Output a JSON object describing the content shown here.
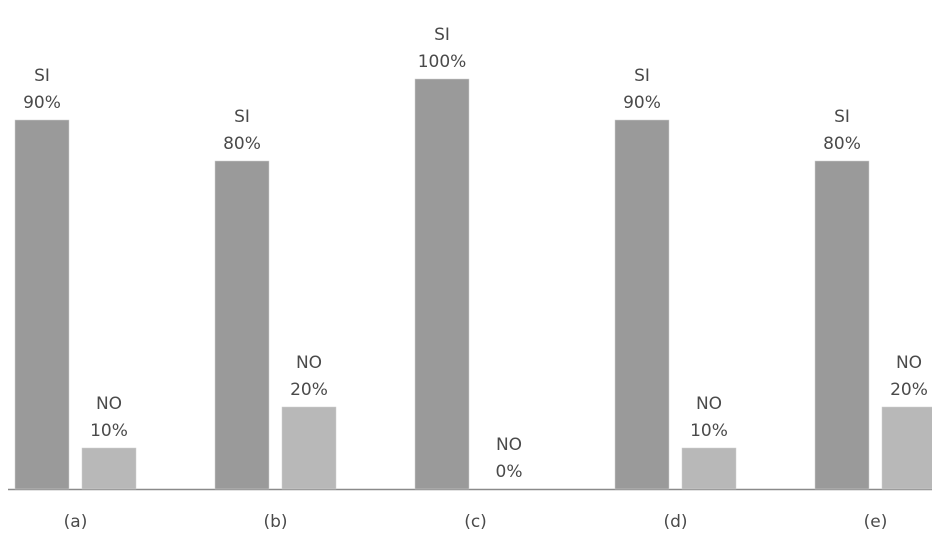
{
  "chart_data": {
    "type": "bar",
    "categories": [
      "(a)",
      "(b)",
      "(c)",
      "(d)",
      "(e)"
    ],
    "series": [
      {
        "name": "SI",
        "values": [
          90,
          80,
          100,
          90,
          80
        ],
        "color": "#9a9a9a"
      },
      {
        "name": "NO",
        "values": [
          10,
          20,
          0,
          10,
          20
        ],
        "color": "#b8b8b8"
      }
    ],
    "data_label_suffix": "%",
    "ylim": [
      0,
      100
    ],
    "grid": false,
    "axis_color": "#8a8a8a"
  }
}
